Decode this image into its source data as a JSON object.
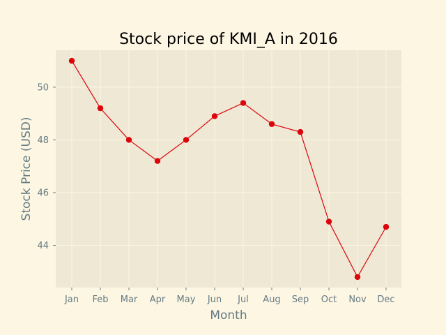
{
  "colors": {
    "figure_background": "#fdf6e3",
    "plot_background": "#eee8d5",
    "grid": "#fdf6e3",
    "line": "#dc050c",
    "marker": "#dc050c",
    "tick_label": "#657b83",
    "axis_label": "#657b83",
    "title": "#000000"
  },
  "chart_data": {
    "type": "line",
    "title": "Stock price of KMI_A in 2016",
    "xlabel": "Month",
    "ylabel": "Stock Price (USD)",
    "categories": [
      "Jan",
      "Feb",
      "Mar",
      "Apr",
      "May",
      "Jun",
      "Jul",
      "Aug",
      "Sep",
      "Oct",
      "Nov",
      "Dec"
    ],
    "series": [
      {
        "values": [
          51.0,
          49.2,
          48.0,
          47.2,
          48.0,
          48.9,
          49.4,
          48.6,
          48.3,
          44.9,
          42.8,
          44.7
        ]
      }
    ],
    "ylim": [
      42.4,
      51.4
    ],
    "yticks": [
      44,
      46,
      48,
      50
    ],
    "grid": true,
    "legend": "none",
    "marker": "circle"
  }
}
